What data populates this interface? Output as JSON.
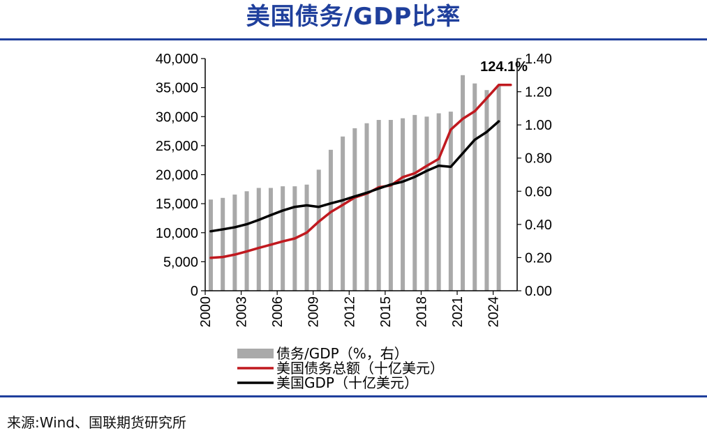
{
  "header": {
    "title": "美国债务/GDP比率"
  },
  "footer": {
    "source": "来源:Wind、国联期货研究所"
  },
  "chart_data": {
    "type": "bar+line",
    "left_axis": {
      "min": 0,
      "max": 40000,
      "ticks": [
        "0",
        "5,000",
        "10,000",
        "15,000",
        "20,000",
        "25,000",
        "30,000",
        "35,000",
        "40,000"
      ]
    },
    "right_axis": {
      "min": 0,
      "max": 1.4,
      "ticks": [
        "0.00",
        "0.20",
        "0.40",
        "0.60",
        "0.80",
        "1.00",
        "1.20",
        "1.40"
      ]
    },
    "x_ticks": [
      "2000",
      "2003",
      "2006",
      "2009",
      "2012",
      "2015",
      "2018",
      "2021",
      "2024"
    ],
    "annotation": "124.1%",
    "years": [
      2000,
      2001,
      2002,
      2003,
      2004,
      2005,
      2006,
      2007,
      2008,
      2009,
      2010,
      2011,
      2012,
      2013,
      2014,
      2015,
      2016,
      2017,
      2018,
      2019,
      2020,
      2021,
      2022,
      2023,
      2024
    ],
    "series": [
      {
        "name": "债务/GDP（%，右）",
        "type": "bar",
        "axis": "right",
        "color": "#a9a9a9",
        "values": [
          0.55,
          0.56,
          0.58,
          0.6,
          0.62,
          0.62,
          0.63,
          0.63,
          0.64,
          0.73,
          0.85,
          0.93,
          0.98,
          1.01,
          1.03,
          1.03,
          1.04,
          1.06,
          1.05,
          1.07,
          1.08,
          1.3,
          1.25,
          1.21,
          1.24
        ]
      },
      {
        "name": "美国债务总额（十亿美元）",
        "type": "line",
        "axis": "left",
        "color": "#c0191f",
        "x": [
          2000,
          2001,
          2002,
          2003,
          2004,
          2005,
          2006,
          2007,
          2008,
          2009,
          2010,
          2011,
          2012,
          2013,
          2014,
          2015,
          2016,
          2017,
          2018,
          2019,
          2020,
          2021,
          2022,
          2023,
          2024,
          2025
        ],
        "values": [
          5670,
          5810,
          6230,
          6780,
          7380,
          7930,
          8510,
          9010,
          10020,
          11910,
          13560,
          14790,
          16070,
          16740,
          17820,
          18150,
          19570,
          20240,
          21520,
          22720,
          27750,
          29620,
          30930,
          33170,
          35460,
          35460
        ]
      },
      {
        "name": "美国GDP（十亿美元）",
        "type": "line",
        "axis": "left",
        "color": "#000000",
        "x": [
          2000,
          2001,
          2002,
          2003,
          2004,
          2005,
          2006,
          2007,
          2008,
          2009,
          2010,
          2011,
          2012,
          2013,
          2014,
          2015,
          2016,
          2017,
          2018,
          2019,
          2020,
          2021,
          2022,
          2023,
          2024
        ],
        "values": [
          10250,
          10580,
          10940,
          11460,
          12210,
          13040,
          13820,
          14450,
          14710,
          14450,
          15050,
          15600,
          16250,
          16880,
          17610,
          18300,
          18800,
          19610,
          20660,
          21540,
          21350,
          23680,
          26010,
          27360,
          29180
        ]
      }
    ]
  }
}
